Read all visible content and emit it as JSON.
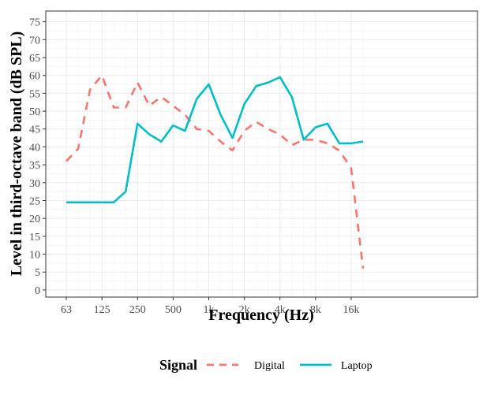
{
  "chart_data": {
    "type": "line",
    "xlabel": "Frequency (Hz)",
    "ylabel": "Level in third-octave band (dB SPL)",
    "x": [
      "63",
      "80",
      "100",
      "125",
      "160",
      "200",
      "250",
      "315",
      "400",
      "500",
      "630",
      "800",
      "1k",
      "1.25k",
      "1.6k",
      "2k",
      "2.5k",
      "3.15k",
      "4k",
      "5k",
      "6.3k",
      "8k",
      "10k",
      "12.5k",
      "16k",
      "20k"
    ],
    "x_tick_labels": [
      "63",
      "125",
      "250",
      "500",
      "1k",
      "2k",
      "4k",
      "8k",
      "16k"
    ],
    "y_tick_labels": [
      "0",
      "5",
      "10",
      "15",
      "20",
      "25",
      "30",
      "35",
      "40",
      "45",
      "50",
      "55",
      "60",
      "65",
      "70",
      "75"
    ],
    "ylim": [
      -2,
      78
    ],
    "grid": true,
    "legend": {
      "title": "Signal",
      "position": "bottom"
    },
    "series": [
      {
        "name": "Digital",
        "color": "#F8766D",
        "dash": "dashed",
        "values": [
          36,
          39.5,
          56,
          60,
          51,
          51,
          58,
          51.5,
          54,
          51.5,
          49,
          45,
          44.5,
          41.5,
          39,
          44.5,
          47,
          45,
          43.5,
          40.5,
          42,
          42,
          41,
          39,
          34,
          6
        ]
      },
      {
        "name": "Laptop",
        "color": "#00BFC4",
        "dash": "solid",
        "values": [
          24.5,
          24.5,
          24.5,
          24.5,
          24.5,
          27.5,
          46.5,
          43.5,
          41.5,
          46,
          44.5,
          53.5,
          57.5,
          49,
          42.5,
          52,
          57,
          58,
          59.5,
          54,
          42,
          45.5,
          46.5,
          41,
          41,
          41.5
        ]
      }
    ]
  }
}
